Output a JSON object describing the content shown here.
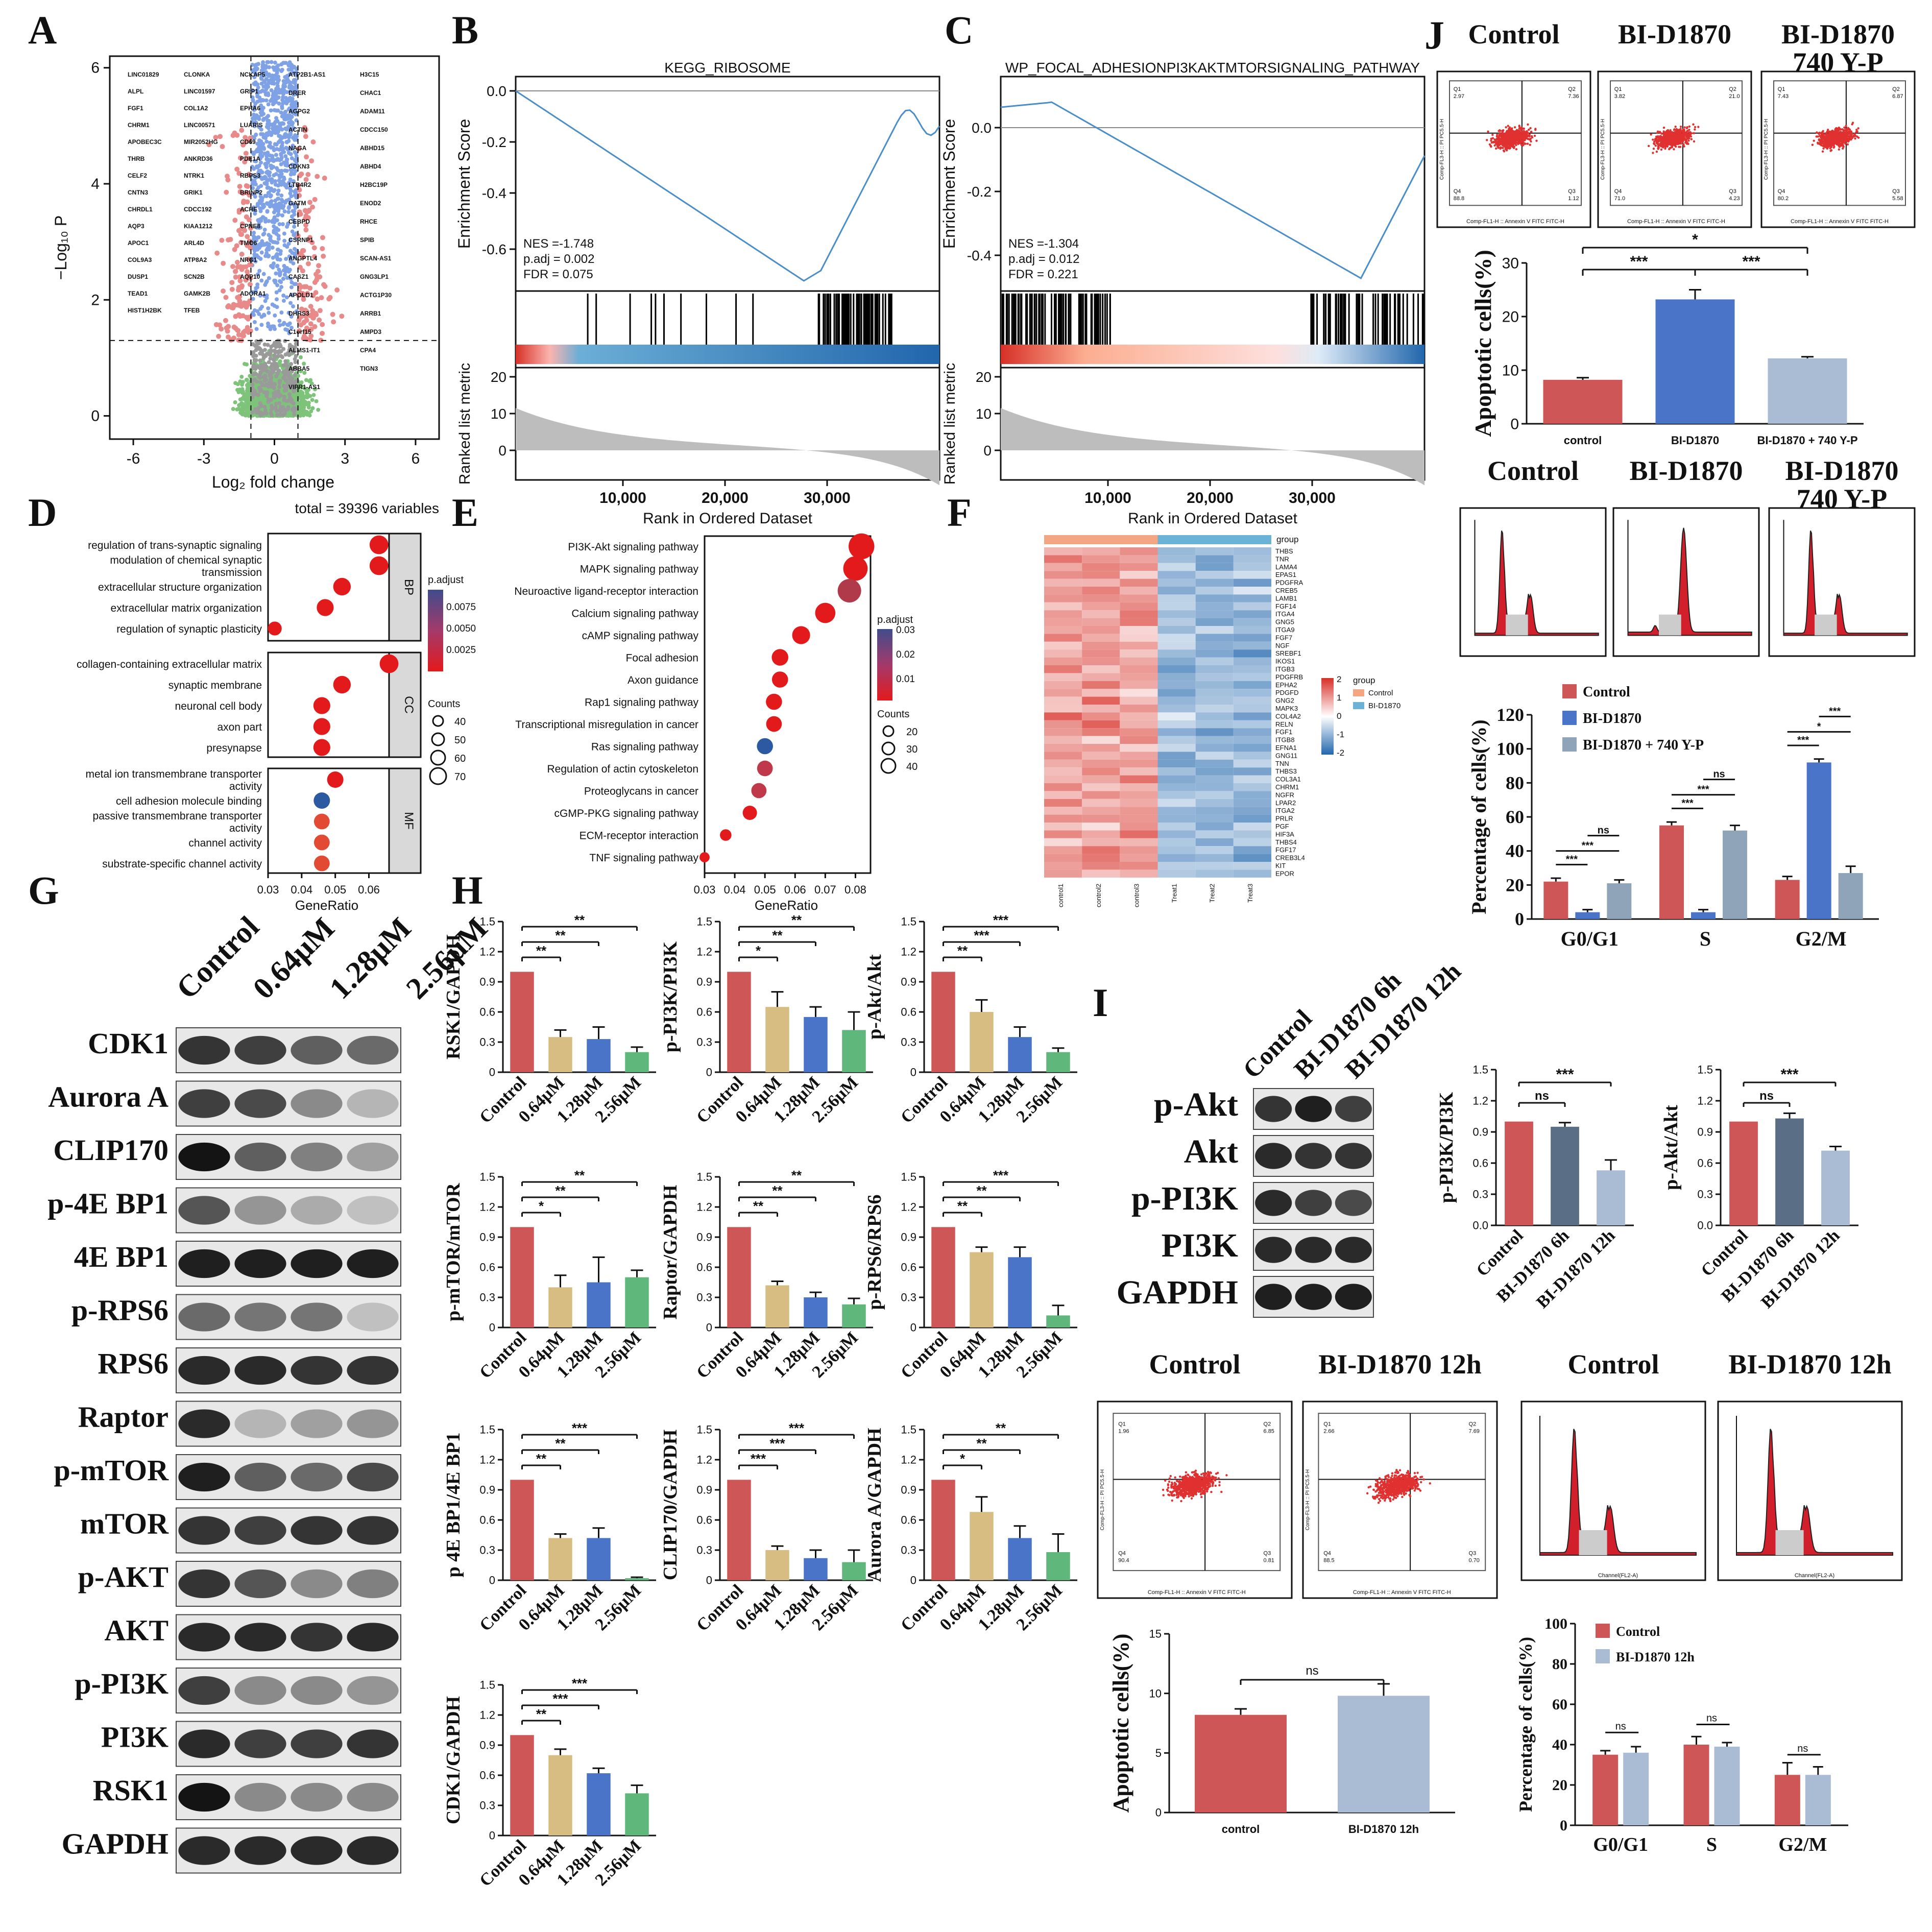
{
  "panel_letters": {
    "A": "A",
    "B": "B",
    "C": "C",
    "D": "D",
    "E": "E",
    "F": "F",
    "G": "G",
    "H": "H",
    "I": "I",
    "J": "J"
  },
  "volcano": {
    "xlabel": "Log₂ fold change",
    "ylabel": "−Log₁₀ P",
    "total": "total = 39396 variables",
    "xticks": [
      "-6",
      "-3",
      "0",
      "3",
      "6"
    ],
    "yticks": [
      "0",
      "2",
      "4",
      "6"
    ],
    "genes_left": [
      "LINC01829",
      "CLONKA",
      "NCKAP5",
      "ALPL",
      "LINC01597",
      "GRIP1",
      "FGF1",
      "COL1A2",
      "EPHA6",
      "CHRM1",
      "LINC00571",
      "LUARIS",
      "APOBEC3C",
      "MIR2052HG",
      "CD69",
      "THRB",
      "ANKRD36",
      "PDE1A",
      "CELF2",
      "NTRK1",
      "RBPS3",
      "CNTN3",
      "GRIK1",
      "BRINP2",
      "CHRDL1",
      "CDCC192",
      "ACHE",
      "AQP3",
      "KIAA1212",
      "CPNE8",
      "APOC1",
      "ARL4D",
      "TMO6",
      "COL9A3",
      "ATP8A2",
      "NRG1",
      "DUSP1",
      "SCN2B",
      "AQP10",
      "TEAD1",
      "GAMK2B",
      "ADORA1",
      "HIST1H2BK",
      "TFEB"
    ],
    "genes_right": [
      "ATP2B1-AS1",
      "H3C15",
      "DRER",
      "CHAC1",
      "AGPG2",
      "ADAM11",
      "ACTIN",
      "CDCC150",
      "NAGA",
      "ABHD15",
      "CDKN3",
      "ABHD4",
      "LTB4R2",
      "H2BC19P",
      "GATM",
      "ENOD2",
      "CEBPD",
      "RHCE",
      "CSRNP1",
      "SPIB",
      "ANGPTL4",
      "SCAN-AS1",
      "CASZ1",
      "GNG3LP1",
      "APOLD1",
      "ACTG1P30",
      "DHRS3",
      "ARRB1",
      "C1orf15",
      "AMPD3",
      "ALMS1-IT1",
      "CPA4",
      "ABBA5",
      "TIGN3",
      "VIPR1-AS1"
    ]
  },
  "gsea_B": {
    "title": "KEGG_RIBOSOME",
    "ylabel": "Enrichment Score",
    "nes": "NES =-1.748",
    "padj": "p.adj = 0.002",
    "fdr": "FDR = 0.075",
    "yticks": [
      "0.0",
      "-0.2",
      "-0.4",
      "-0.6"
    ],
    "ranked_label": "Ranked list metric",
    "ranked_ticks": [
      "20",
      "10",
      "0"
    ],
    "xticks": [
      "10,000",
      "20,000",
      "30,000"
    ],
    "xlabel": "Rank in Ordered Dataset"
  },
  "gsea_C": {
    "title": "WP_FOCAL_ADHESIONPI3KAKTMTORSIGNALING_PATHWAY",
    "ylabel": "Enrichment Score",
    "nes": "NES =-1.304",
    "padj": "p.adj = 0.012",
    "fdr": "FDR = 0.221",
    "yticks": [
      "0.0",
      "-0.2",
      "-0.4"
    ],
    "ranked_label": "Ranked list metric",
    "ranked_ticks": [
      "20",
      "10",
      "0"
    ],
    "xticks": [
      "10,000",
      "20,000",
      "30,000"
    ],
    "xlabel": "Rank in Ordered Dataset"
  },
  "dot_D": {
    "xlabel": "GeneRatio",
    "xticks": [
      "0.03",
      "0.04",
      "0.05",
      "0.06"
    ],
    "legend_title": "p.adjust",
    "legend_ticks": [
      "0.0075",
      "0.0050",
      "0.0025"
    ],
    "counts_title": "Counts",
    "counts": [
      "40",
      "50",
      "60",
      "70"
    ],
    "groups": [
      {
        "name": "BP",
        "terms": [
          {
            "l1": "regulation of trans-synaptic signaling",
            "l2": "",
            "x": 0.063,
            "c": "#e31a1c",
            "s": 70
          },
          {
            "l1": "modulation of chemical synaptic",
            "l2": "transmission",
            "x": 0.063,
            "c": "#e31a1c",
            "s": 70
          },
          {
            "l1": "extracellular structure organization",
            "l2": "",
            "x": 0.052,
            "c": "#e31a1c",
            "s": 60
          },
          {
            "l1": "extracellular matrix organization",
            "l2": "",
            "x": 0.047,
            "c": "#e31a1c",
            "s": 55
          },
          {
            "l1": "regulation of synaptic plasticity",
            "l2": "",
            "x": 0.032,
            "c": "#e31a1c",
            "s": 30
          }
        ]
      },
      {
        "name": "CC",
        "terms": [
          {
            "l1": "collagen-containing extracellular matrix",
            "l2": "",
            "x": 0.066,
            "c": "#e31a1c",
            "s": 70
          },
          {
            "l1": "synaptic membrane",
            "l2": "",
            "x": 0.052,
            "c": "#e31a1c",
            "s": 60
          },
          {
            "l1": "neuronal cell body",
            "l2": "",
            "x": 0.046,
            "c": "#e31a1c",
            "s": 55
          },
          {
            "l1": "axon part",
            "l2": "",
            "x": 0.046,
            "c": "#e31a1c",
            "s": 55
          },
          {
            "l1": "presynapse",
            "l2": "",
            "x": 0.046,
            "c": "#e31a1c",
            "s": 55
          }
        ]
      },
      {
        "name": "MF",
        "terms": [
          {
            "l1": "metal ion transmembrane transporter",
            "l2": "activity",
            "x": 0.05,
            "c": "#e31a1c",
            "s": 50
          },
          {
            "l1": "cell adhesion molecule binding",
            "l2": "",
            "x": 0.046,
            "c": "#2c5aa0",
            "s": 50
          },
          {
            "l1": "passive transmembrane transporter",
            "l2": "activity",
            "x": 0.046,
            "c": "#e34a33",
            "s": 45
          },
          {
            "l1": "channel activity",
            "l2": "",
            "x": 0.046,
            "c": "#e34a33",
            "s": 45
          },
          {
            "l1": "substrate-specific channel activity",
            "l2": "",
            "x": 0.046,
            "c": "#e34a33",
            "s": 45
          }
        ]
      }
    ]
  },
  "dot_E": {
    "xlabel": "GeneRatio",
    "xticks": [
      "0.03",
      "0.04",
      "0.05",
      "0.06",
      "0.07",
      "0.08"
    ],
    "legend_title": "p.adjust",
    "legend_ticks": [
      "0.03",
      "0.02",
      "0.01"
    ],
    "counts_title": "Counts",
    "counts": [
      "20",
      "30",
      "40"
    ],
    "terms": [
      {
        "label": "PI3K-Akt signaling pathway",
        "x": 0.082,
        "c": "#e31a1c",
        "s": 45
      },
      {
        "label": "MAPK signaling pathway",
        "x": 0.08,
        "c": "#e31a1c",
        "s": 42
      },
      {
        "label": "Neuroactive ligand-receptor interaction",
        "x": 0.078,
        "c": "#b0394a",
        "s": 40
      },
      {
        "label": "Calcium signaling pathway",
        "x": 0.07,
        "c": "#e31a1c",
        "s": 33
      },
      {
        "label": "cAMP signaling pathway",
        "x": 0.062,
        "c": "#e31a1c",
        "s": 28
      },
      {
        "label": "Focal adhesion",
        "x": 0.055,
        "c": "#e31a1c",
        "s": 25
      },
      {
        "label": "Axon guidance",
        "x": 0.055,
        "c": "#e31a1c",
        "s": 24
      },
      {
        "label": "Rap1 signaling pathway",
        "x": 0.053,
        "c": "#e31a1c",
        "s": 24
      },
      {
        "label": "Transcriptional misregulation in cancer",
        "x": 0.053,
        "c": "#e31a1c",
        "s": 23
      },
      {
        "label": "Ras signaling pathway",
        "x": 0.05,
        "c": "#2c5aa0",
        "s": 24
      },
      {
        "label": "Regulation of actin cytoskeleton",
        "x": 0.05,
        "c": "#c0394a",
        "s": 23
      },
      {
        "label": "Proteoglycans in cancer",
        "x": 0.048,
        "c": "#c0394a",
        "s": 22
      },
      {
        "label": "cGMP-PKG signaling pathway",
        "x": 0.045,
        "c": "#e31a1c",
        "s": 20
      },
      {
        "label": "ECM-receptor interaction",
        "x": 0.037,
        "c": "#e31a1c",
        "s": 14
      },
      {
        "label": "TNF signaling pathway",
        "x": 0.03,
        "c": "#e31a1c",
        "s": 11
      }
    ]
  },
  "heatmap_F": {
    "group_label": "group",
    "genes": [
      "THBS",
      "TNR",
      "LAMA4",
      "EPAS1",
      "PDGFRA",
      "CREB5",
      "LAMB1",
      "FGF14",
      "ITGA4",
      "GNG5",
      "ITGA9",
      "FGF7",
      "NGF",
      "SREBF1",
      "IKOS1",
      "ITGB3",
      "PDGFRB",
      "EPHA2",
      "PDGFD",
      "GNG2",
      "MAPK3",
      "COL4A2",
      "RELN",
      "FGF1",
      "ITGB8",
      "EFNA1",
      "GNG11",
      "TNN",
      "THBS3",
      "COL3A1",
      "CHRM1",
      "NGFR",
      "LPAR2",
      "ITGA2",
      "PRLR",
      "PGF",
      "HIF3A",
      "THBS4",
      "FGF17",
      "CREB3L4",
      "KIT",
      "EPOR"
    ],
    "samples": [
      "control1",
      "control2",
      "control3",
      "Treat1",
      "Treat2",
      "Treat3"
    ],
    "legend_ticks": [
      "2",
      "1",
      "0",
      "-1",
      "-2"
    ],
    "group_legend_title": "group",
    "groups": [
      "Control",
      "BI-D1870"
    ]
  },
  "western_G": {
    "lanes": [
      "Control",
      "0.64μM",
      "1.28μM",
      "2.56μM"
    ],
    "proteins": [
      "CDK1",
      "Aurora A",
      "CLIP170",
      "p-4E BP1",
      "4E BP1",
      "p-RPS6",
      "RPS6",
      "Raptor",
      "p-mTOR",
      "mTOR",
      "p-AKT",
      "AKT",
      "p-PI3K",
      "PI3K",
      "RSK1",
      "GAPDH"
    ],
    "intensity": [
      [
        0.85,
        0.8,
        0.65,
        0.6
      ],
      [
        0.8,
        0.75,
        0.45,
        0.25
      ],
      [
        1,
        0.65,
        0.5,
        0.35
      ],
      [
        0.7,
        0.4,
        0.3,
        0.2
      ],
      [
        0.95,
        0.95,
        0.95,
        0.95
      ],
      [
        0.6,
        0.55,
        0.55,
        0.2
      ],
      [
        0.9,
        0.9,
        0.85,
        0.85
      ],
      [
        0.9,
        0.25,
        0.35,
        0.4
      ],
      [
        0.95,
        0.65,
        0.6,
        0.75
      ],
      [
        0.85,
        0.8,
        0.85,
        0.85
      ],
      [
        0.85,
        0.7,
        0.45,
        0.5
      ],
      [
        0.9,
        0.9,
        0.85,
        0.9
      ],
      [
        0.8,
        0.45,
        0.45,
        0.4
      ],
      [
        0.9,
        0.8,
        0.8,
        0.85
      ],
      [
        1,
        0.45,
        0.45,
        0.45
      ],
      [
        0.9,
        0.9,
        0.9,
        0.9
      ]
    ]
  },
  "bars_H": {
    "categories": [
      "Control",
      "0.64μM",
      "1.28μM",
      "2.56μM"
    ],
    "colors": [
      "#cf5656",
      "#d8bd82",
      "#4a74c7",
      "#5fb77c"
    ],
    "yticks": [
      "0",
      "0.3",
      "0.6",
      "0.9",
      "1.2",
      "1.5"
    ],
    "charts": [
      {
        "ylabel": "RSK1/GAPDH",
        "values": [
          1.0,
          0.35,
          0.33,
          0.2
        ],
        "errs": [
          0,
          0.07,
          0.12,
          0.05
        ],
        "sig": [
          "**",
          "**",
          "**"
        ]
      },
      {
        "ylabel": "p-PI3K/PI3K",
        "values": [
          1.0,
          0.65,
          0.55,
          0.42
        ],
        "errs": [
          0,
          0.15,
          0.1,
          0.18
        ],
        "sig": [
          "*",
          "**",
          "**"
        ]
      },
      {
        "ylabel": "p-Akt/Akt",
        "values": [
          1.0,
          0.6,
          0.35,
          0.2
        ],
        "errs": [
          0,
          0.12,
          0.1,
          0.04
        ],
        "sig": [
          "**",
          "***",
          "***"
        ]
      },
      {
        "ylabel": "p-mTOR/mTOR",
        "values": [
          1.0,
          0.4,
          0.45,
          0.5
        ],
        "errs": [
          0,
          0.12,
          0.25,
          0.07
        ],
        "sig": [
          "*",
          "**",
          "**"
        ]
      },
      {
        "ylabel": "Raptor/GAPDH",
        "values": [
          1.0,
          0.42,
          0.3,
          0.23
        ],
        "errs": [
          0,
          0.04,
          0.05,
          0.06
        ],
        "sig": [
          "**",
          "**",
          "**"
        ]
      },
      {
        "ylabel": "p-RPS6/RPS6",
        "values": [
          1.0,
          0.75,
          0.7,
          0.12
        ],
        "errs": [
          0,
          0.05,
          0.1,
          0.1
        ],
        "sig": [
          "**",
          "**",
          "***"
        ]
      },
      {
        "ylabel": "p 4E BP1/4E BP1",
        "values": [
          1.0,
          0.42,
          0.42,
          0.02
        ],
        "errs": [
          0,
          0.04,
          0.1,
          0.01
        ],
        "sig": [
          "**",
          "**",
          "***"
        ]
      },
      {
        "ylabel": "CLIP170/GAPDH",
        "values": [
          1.0,
          0.3,
          0.22,
          0.18
        ],
        "errs": [
          0,
          0.04,
          0.08,
          0.12
        ],
        "sig": [
          "***",
          "***",
          "***"
        ]
      },
      {
        "ylabel": "Aurora A/GAPDH",
        "values": [
          1.0,
          0.68,
          0.42,
          0.28
        ],
        "errs": [
          0,
          0.15,
          0.12,
          0.18
        ],
        "sig": [
          "*",
          "**",
          "**"
        ]
      },
      {
        "ylabel": "CDK1/GAPDH",
        "values": [
          1.0,
          0.8,
          0.62,
          0.42
        ],
        "errs": [
          0,
          0.06,
          0.05,
          0.08
        ],
        "sig": [
          "**",
          "***",
          "***"
        ]
      }
    ]
  },
  "panel_I": {
    "lanes": [
      "Control",
      "BI-D1870 6h",
      "BI-D1870 12h"
    ],
    "proteins": [
      "p-Akt",
      "Akt",
      "p-PI3K",
      "PI3K",
      "GAPDH"
    ],
    "intensity": [
      [
        0.85,
        0.95,
        0.8
      ],
      [
        0.9,
        0.85,
        0.85
      ],
      [
        0.9,
        0.8,
        0.75
      ],
      [
        0.9,
        0.9,
        0.9
      ],
      [
        0.95,
        0.95,
        0.95
      ]
    ],
    "bar_categories": [
      "Control",
      "BI-D1870 6h",
      "BI-D1870 12h"
    ],
    "bar_colors": [
      "#cf5656",
      "#5a6f85",
      "#a9bcd4"
    ],
    "yticks": [
      "0.0",
      "0.3",
      "0.6",
      "0.9",
      "1.2",
      "1.5"
    ],
    "charts": [
      {
        "ylabel": "p-PI3K/PI3K",
        "values": [
          1.0,
          0.95,
          0.53
        ],
        "errs": [
          0,
          0.04,
          0.1
        ],
        "sig": [
          "ns",
          "***"
        ]
      },
      {
        "ylabel": "p-Akt/Akt",
        "values": [
          1.0,
          1.03,
          0.72
        ],
        "errs": [
          0,
          0.05,
          0.04
        ],
        "sig": [
          "ns",
          "***"
        ]
      }
    ],
    "flow_titles": [
      "Control",
      "BI-D1870 12h"
    ],
    "flow_quads": [
      [
        "Q1\n1.96",
        "Q2\n6.85",
        "Q4\n90.4",
        "Q3\n0.81"
      ],
      [
        "Q1\n2.66",
        "Q2\n7.69",
        "Q4\n88.5",
        "Q3\n0.70"
      ]
    ],
    "flow_xlabel": "Comp-FL1-H :: Annexin V FITC FITC-H",
    "flow_ylabel": "Comp-FL3-H :: PI PC5.5-H",
    "cc_titles": [
      "Control",
      "BI-D1870 12h"
    ],
    "cc_xlabel": "Channel(FL2-A)",
    "apop_ylabel": "Apoptotic cells(%)",
    "apop_categories": [
      "control",
      "BI-D1870 12h"
    ],
    "apop_values": [
      8.2,
      9.8
    ],
    "apop_errs": [
      0.5,
      1.0
    ],
    "apop_colors": [
      "#cf5656",
      "#a9bcd4"
    ],
    "apop_yticks": [
      "0",
      "5",
      "10",
      "15"
    ],
    "apop_sig": "ns",
    "cycle_ylabel": "Percentage of cells(%)",
    "cycle_categories": [
      "G0/G1",
      "S",
      "G2/M"
    ],
    "cycle_legend": [
      "Control",
      "BI-D1870 12h"
    ],
    "cycle_colors": [
      "#cf5656",
      "#a9bcd4"
    ],
    "cycle_values": [
      [
        35,
        40,
        25
      ],
      [
        36,
        39,
        25
      ]
    ],
    "cycle_errs": [
      [
        2,
        4,
        6
      ],
      [
        3,
        2,
        4
      ]
    ],
    "cycle_yticks": [
      "0",
      "20",
      "40",
      "60",
      "80",
      "100"
    ],
    "cycle_sig": [
      "ns",
      "ns",
      "ns"
    ]
  },
  "panel_J": {
    "flow_titles": [
      "Control",
      "BI-D1870",
      "BI-D1870\n740 Y-P"
    ],
    "flow_quads": [
      [
        "Q1\n2.97",
        "Q2\n7.36",
        "Q4\n88.8",
        "Q3\n1.12"
      ],
      [
        "Q1\n3.82",
        "Q2\n21.0",
        "Q4\n71.0",
        "Q3\n4.23"
      ],
      [
        "Q1\n7.43",
        "Q2\n6.87",
        "Q4\n80.2",
        "Q3\n5.58"
      ]
    ],
    "flow_xlabel": "Comp-FL1-H :: Annexin V FITC FITC-H",
    "flow_ylabel": "Comp-FL3-H :: PI PC5.5-H",
    "apop_ylabel": "Apoptotic cells(%)",
    "apop_categories": [
      "control",
      "BI-D1870",
      "BI-D1870 + 740 Y-P"
    ],
    "apop_values": [
      8.2,
      23.2,
      12.2
    ],
    "apop_errs": [
      0.4,
      1.8,
      0.3
    ],
    "apop_colors": [
      "#cf5656",
      "#4a74c7",
      "#a9bcd4"
    ],
    "apop_yticks": [
      "0",
      "10",
      "20",
      "30"
    ],
    "apop_sig": [
      "***",
      "***",
      "*"
    ],
    "cc_titles": [
      "Control",
      "BI-D1870",
      "BI-D1870\n740 Y-P"
    ],
    "cycle_ylabel": "Percentage of cells(%)",
    "cycle_categories": [
      "G0/G1",
      "S",
      "G2/M"
    ],
    "cycle_legend": [
      "Control",
      "BI-D1870",
      "BI-D1870 + 740 Y-P"
    ],
    "cycle_colors": [
      "#cf5656",
      "#4a74c7",
      "#8fa4b8"
    ],
    "cycle_values": [
      [
        22,
        55,
        23
      ],
      [
        4,
        4,
        92
      ],
      [
        21,
        52,
        27
      ]
    ],
    "cycle_errs": [
      [
        1,
        1,
        1
      ],
      [
        0.5,
        0.5,
        1
      ],
      [
        1,
        2,
        3
      ]
    ],
    "cycle_yticks": [
      "0",
      "20",
      "40",
      "60",
      "80",
      "100",
      "120"
    ],
    "cycle_sig": [
      "***",
      "***",
      "ns",
      "***",
      "***",
      "ns",
      "***",
      "*",
      "***"
    ]
  }
}
